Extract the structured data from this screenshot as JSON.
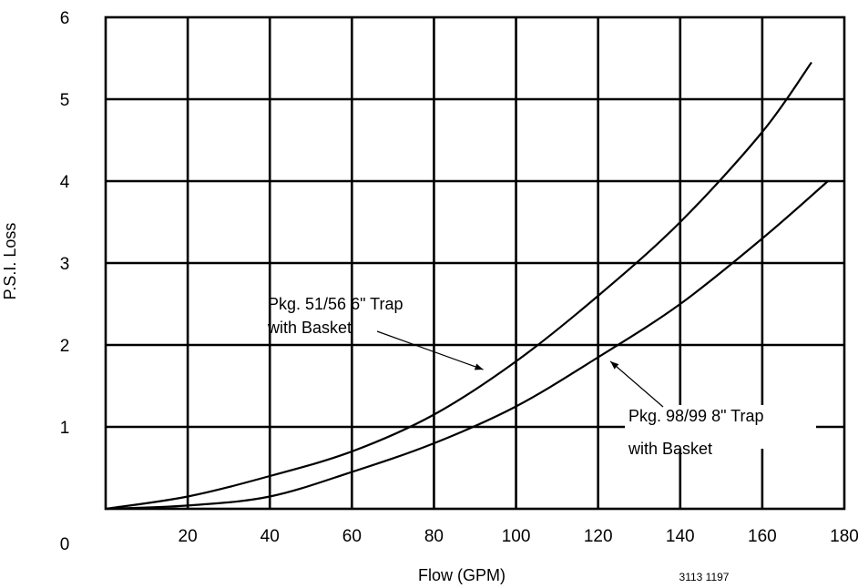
{
  "chart_data": {
    "type": "line",
    "title": "",
    "xlabel": "Flow (GPM)",
    "ylabel": "P.S.I. Loss",
    "xlim": [
      0,
      180
    ],
    "ylim": [
      0,
      6
    ],
    "x_ticks": [
      "0",
      "20",
      "40",
      "60",
      "80",
      "100",
      "120",
      "140",
      "160",
      "180"
    ],
    "y_ticks": [
      "1",
      "2",
      "3",
      "4",
      "5",
      "6"
    ],
    "grid": true,
    "series": [
      {
        "name": "Pkg. 51/56 6\" Trap with Basket",
        "x": [
          0,
          20,
          40,
          60,
          80,
          100,
          120,
          140,
          160,
          172
        ],
        "y": [
          0,
          0.15,
          0.4,
          0.7,
          1.15,
          1.8,
          2.6,
          3.5,
          4.6,
          5.45
        ]
      },
      {
        "name": "Pkg. 98/99 8\" Trap with Basket",
        "x": [
          0,
          20,
          40,
          60,
          80,
          100,
          120,
          140,
          160,
          176
        ],
        "y": [
          0,
          0.04,
          0.15,
          0.45,
          0.8,
          1.25,
          1.85,
          2.5,
          3.3,
          4.0
        ]
      }
    ],
    "annotations": [
      {
        "line1": "Pkg. 51/56 6\" Trap",
        "line2": "with Basket",
        "points_to": [
          92,
          1.7
        ]
      },
      {
        "line1": "Pkg. 98/99 8\" Trap",
        "line2": "with Basket",
        "points_to": [
          123,
          1.8
        ]
      }
    ],
    "figure_id": "3113 1197"
  }
}
